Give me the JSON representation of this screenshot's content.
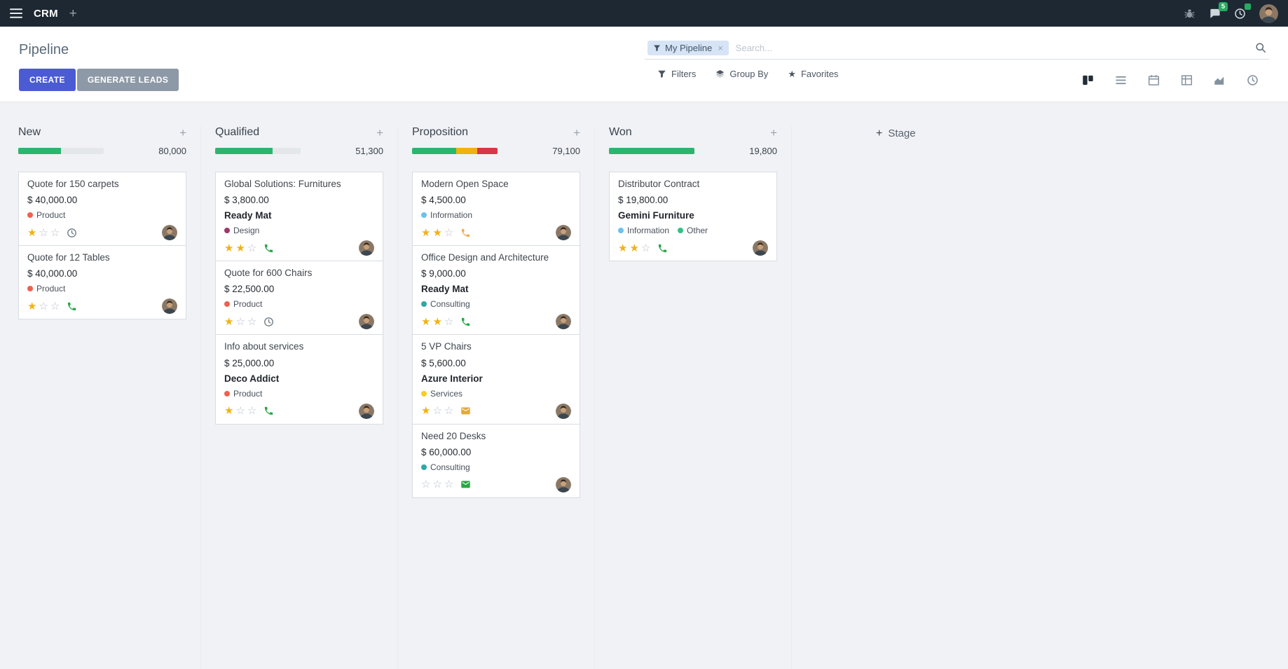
{
  "icons": {
    "plus": "+",
    "close": "×",
    "star_filled": "★",
    "star_empty": "☆",
    "favorite_star": "★"
  },
  "topbar": {
    "app_name": "CRM",
    "messages_badge": "5"
  },
  "control_panel": {
    "title": "Pipeline",
    "create_label": "CREATE",
    "generate_leads_label": "GENERATE LEADS",
    "filters_label": "Filters",
    "group_by_label": "Group By",
    "favorites_label": "Favorites",
    "search": {
      "facet_label": "My Pipeline",
      "placeholder": "Search..."
    }
  },
  "colors": {
    "primary": "#4a5bd4",
    "progress_green": "#2bb66f",
    "progress_yellow": "#efb30e",
    "progress_red": "#dc3545"
  },
  "kanban": {
    "add_column_label": "Stage",
    "columns": [
      {
        "name": "New",
        "amount": "80,000",
        "progress": [
          {
            "color": "#2bb66f",
            "pct": 50
          }
        ],
        "cards": [
          {
            "title": "Quote for 150 carpets",
            "amount": "$ 40,000.00",
            "tags": [
              {
                "label": "Product",
                "color": "#f06050"
              }
            ],
            "stars": 1,
            "activity": {
              "icon": "clock",
              "color": "#75808a"
            }
          },
          {
            "title": "Quote for 12 Tables",
            "amount": "$ 40,000.00",
            "tags": [
              {
                "label": "Product",
                "color": "#f06050"
              }
            ],
            "stars": 1,
            "activity": {
              "icon": "phone",
              "color": "#28a745"
            }
          }
        ]
      },
      {
        "name": "Qualified",
        "amount": "51,300",
        "progress": [
          {
            "color": "#2bb66f",
            "pct": 67
          }
        ],
        "cards": [
          {
            "title": "Global Solutions: Furnitures",
            "amount": "$ 3,800.00",
            "partner": "Ready Mat",
            "tags": [
              {
                "label": "Design",
                "color": "#a03768"
              }
            ],
            "stars": 2,
            "activity": {
              "icon": "phone",
              "color": "#28a745"
            }
          },
          {
            "title": "Quote for 600 Chairs",
            "amount": "$ 22,500.00",
            "tags": [
              {
                "label": "Product",
                "color": "#f06050"
              }
            ],
            "stars": 1,
            "activity": {
              "icon": "clock",
              "color": "#75808a"
            }
          },
          {
            "title": "Info about services",
            "amount": "$ 25,000.00",
            "partner": "Deco Addict",
            "tags": [
              {
                "label": "Product",
                "color": "#f06050"
              }
            ],
            "stars": 1,
            "activity": {
              "icon": "phone",
              "color": "#28a745"
            }
          }
        ]
      },
      {
        "name": "Proposition",
        "amount": "79,100",
        "progress": [
          {
            "color": "#2bb66f",
            "pct": 52
          },
          {
            "color": "#efb30e",
            "pct": 24
          },
          {
            "color": "#dc3545",
            "pct": 24
          }
        ],
        "cards": [
          {
            "title": "Modern Open Space",
            "amount": "$ 4,500.00",
            "tags": [
              {
                "label": "Information",
                "color": "#6cc1ed"
              }
            ],
            "stars": 2,
            "activity": {
              "icon": "phone",
              "color": "#f0ad4e"
            }
          },
          {
            "title": "Office Design and Architecture",
            "amount": "$ 9,000.00",
            "partner": "Ready Mat",
            "tags": [
              {
                "label": "Consulting",
                "color": "#2fa8a5"
              }
            ],
            "stars": 2,
            "activity": {
              "icon": "phone",
              "color": "#28a745"
            }
          },
          {
            "title": "5 VP Chairs",
            "amount": "$ 5,600.00",
            "partner": "Azure Interior",
            "tags": [
              {
                "label": "Services",
                "color": "#f7cd1f"
              }
            ],
            "stars": 1,
            "activity": {
              "icon": "mail",
              "color": "#e4a93b"
            }
          },
          {
            "title": "Need 20 Desks",
            "amount": "$ 60,000.00",
            "tags": [
              {
                "label": "Consulting",
                "color": "#2fa8a5"
              }
            ],
            "stars": 0,
            "activity": {
              "icon": "mail",
              "color": "#28a745"
            }
          }
        ]
      },
      {
        "name": "Won",
        "amount": "19,800",
        "progress": [
          {
            "color": "#2bb66f",
            "pct": 100
          }
        ],
        "cards": [
          {
            "title": "Distributor Contract",
            "amount": "$ 19,800.00",
            "partner": "Gemini Furniture",
            "tags": [
              {
                "label": "Information",
                "color": "#6cc1ed"
              },
              {
                "label": "Other",
                "color": "#30c381"
              }
            ],
            "stars": 2,
            "activity": {
              "icon": "phone",
              "color": "#28a745"
            }
          }
        ]
      }
    ]
  }
}
